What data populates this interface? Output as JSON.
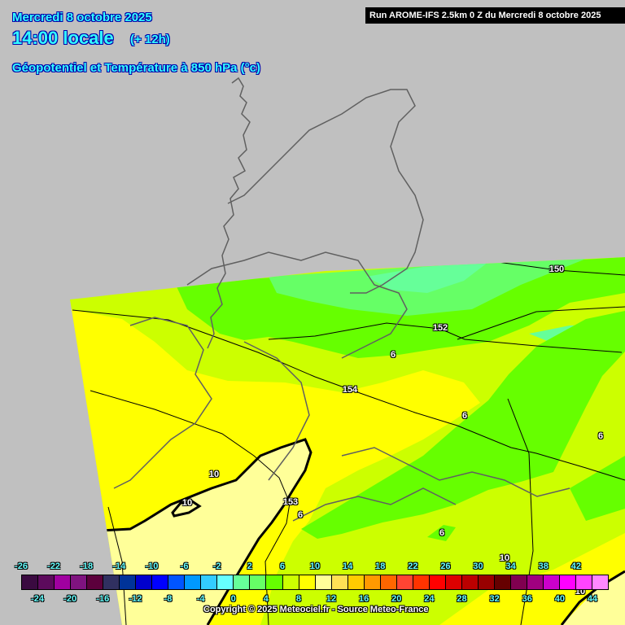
{
  "header": {
    "date": "Mercredi 8 octobre 2025",
    "time": "14:00 locale",
    "lead": "(+ 12h)",
    "parameter": "Géopotentiel et Température à 850 hPa (°c)",
    "run": "Run AROME-IFS 2.5km 0 Z du Mercredi 8 octobre 2025"
  },
  "map": {
    "background_color": "#c0c0c0",
    "contour_labels": [
      {
        "name": "geopotential-150",
        "text": "150"
      },
      {
        "name": "geopotential-152",
        "text": "152"
      },
      {
        "name": "geopotential-154",
        "text": "154"
      },
      {
        "name": "geopotential-153",
        "text": "153"
      },
      {
        "name": "isotherm-6",
        "text": "6"
      },
      {
        "name": "isotherm-6",
        "text": "6"
      },
      {
        "name": "isotherm-6",
        "text": "6"
      },
      {
        "name": "isotherm-6",
        "text": "6"
      },
      {
        "name": "isotherm-6",
        "text": "6"
      },
      {
        "name": "isotherm-10",
        "text": "10"
      },
      {
        "name": "isotherm-10",
        "text": "10"
      },
      {
        "name": "isotherm-10",
        "text": "10"
      },
      {
        "name": "isotherm-10",
        "text": "10"
      }
    ]
  },
  "legend": {
    "top_labels": [
      "-26",
      "-22",
      "-18",
      "-14",
      "-10",
      "-6",
      "-2",
      "2",
      "6",
      "10",
      "14",
      "18",
      "22",
      "26",
      "30",
      "34",
      "38",
      "42"
    ],
    "bottom_labels": [
      "-24",
      "-20",
      "-16",
      "-12",
      "-8",
      "-4",
      "0",
      "4",
      "8",
      "12",
      "16",
      "20",
      "24",
      "28",
      "32",
      "36",
      "40",
      "44"
    ],
    "colors": [
      "#3a0a40",
      "#5c0a5c",
      "#a000a0",
      "#7f137f",
      "#5c003c",
      "#303060",
      "#003399",
      "#0000cc",
      "#0000ff",
      "#0055ff",
      "#0099ff",
      "#33ccff",
      "#66ffff",
      "#66ff99",
      "#66ff66",
      "#66ff00",
      "#ccff00",
      "#ffff00",
      "#ffff99",
      "#ffe055",
      "#ffcc00",
      "#ff9900",
      "#ff6600",
      "#ff4433",
      "#ff3300",
      "#ff0000",
      "#dd0000",
      "#bb0000",
      "#990000",
      "#660000",
      "#800050",
      "#a00080",
      "#cc00cc",
      "#ff00ff",
      "#ff44ff",
      "#ff88ff"
    ]
  },
  "copyright": "Copyright © 2025 Meteociel.fr - Source Meteo-France"
}
